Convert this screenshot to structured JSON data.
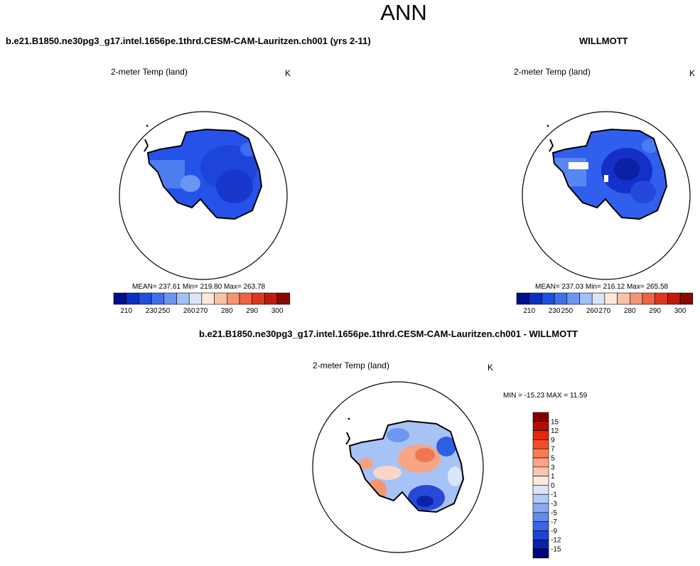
{
  "title": "ANN",
  "panels": [
    {
      "case": "b.e21.B1850.ne30pg3_g17.intel.1656pe.1thrd.CESM-CAM-Lauritzen.ch001 (yrs 2-11)",
      "subtitle": "2-meter Temp (land)",
      "unit": "K",
      "stats": "MEAN= 237.61  Min= 219.80  Max= 263.78"
    },
    {
      "case": "WILLMOTT",
      "subtitle": "2-meter Temp (land)",
      "unit": "K",
      "stats": "MEAN= 237.03  Min= 216.12  Max= 265.58"
    },
    {
      "case": "b.e21.B1850.ne30pg3_g17.intel.1656pe.1thrd.CESM-CAM-Lauritzen.ch001 - WILLMOTT",
      "subtitle": "2-meter Temp (land)",
      "unit": "K",
      "stats": "MIN = -15.23 MAX =  11.59"
    }
  ],
  "colorbar_abs": {
    "colors": [
      "#000e8e",
      "#0b2fc2",
      "#1e50e0",
      "#3f70ec",
      "#6c96f2",
      "#a3c0f7",
      "#d8e6fb",
      "#fde9dc",
      "#fac2a6",
      "#f6946f",
      "#ef6342",
      "#e0361d",
      "#c01b0a",
      "#8a0900"
    ],
    "labels": [
      "210",
      "230",
      "250",
      "260",
      "270",
      "280",
      "290",
      "300"
    ]
  },
  "colorbar_diff": {
    "colors": [
      "#840000",
      "#b50f00",
      "#e02a0c",
      "#f44f24",
      "#f87c52",
      "#fba585",
      "#fcc7ae",
      "#fdeadd",
      "#d9e7fb",
      "#b1cbf8",
      "#8aabf3",
      "#5f8aee",
      "#3a66e5",
      "#1c44d6",
      "#0a22ab",
      "#00067a"
    ],
    "labels": [
      "15",
      "12",
      "9",
      "7",
      "5",
      "3",
      "1",
      "0",
      "-1",
      "-3",
      "-5",
      "-7",
      "-9",
      "-12",
      "-15"
    ]
  }
}
